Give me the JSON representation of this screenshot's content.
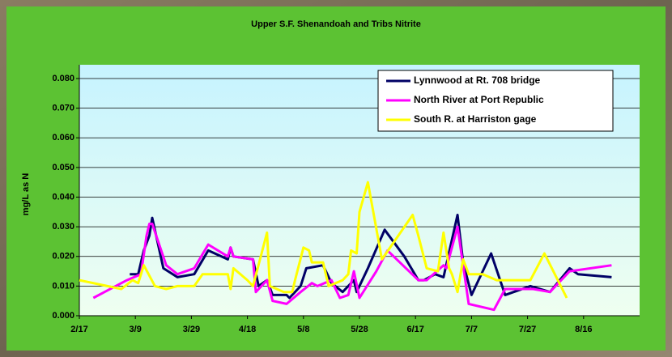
{
  "chart_data": {
    "type": "line",
    "title": "Upper S.F. Shenandoah and Tribs Nitrite",
    "y_label": "mg/L as N",
    "xlim": [
      "2/17",
      "9/5"
    ],
    "xticks": [
      "2/17",
      "3/9",
      "3/29",
      "4/18",
      "5/8",
      "5/28",
      "6/17",
      "7/7",
      "7/27",
      "8/16"
    ],
    "ylim": [
      0,
      0.08
    ],
    "yticks": [
      {
        "value": 0,
        "label": "0.000"
      },
      {
        "value": 0.01,
        "label": "0.010"
      },
      {
        "value": 0.02,
        "label": "0.020"
      },
      {
        "value": 0.03,
        "label": "0.030"
      },
      {
        "value": 0.04,
        "label": "0.040"
      },
      {
        "value": 0.05,
        "label": "0.050"
      },
      {
        "value": 0.06,
        "label": "0.060"
      },
      {
        "value": 0.07,
        "label": "0.070"
      },
      {
        "value": 0.08,
        "label": "0.080"
      }
    ],
    "grid": true,
    "legend": "upper right",
    "series": [
      {
        "name": "Lynnwood at Rt. 708 bridge",
        "color": "#000066",
        "x": [
          "3/7",
          "3/10",
          "3/12",
          "3/14",
          "3/15",
          "3/19",
          "3/24",
          "3/30",
          "4/4",
          "4/11",
          "4/12",
          "4/13",
          "4/20",
          "4/22",
          "4/25",
          "4/27",
          "5/2",
          "5/3",
          "5/7",
          "5/9",
          "5/15",
          "5/18",
          "5/22",
          "5/26",
          "5/27",
          "5/31",
          "6/6",
          "6/13",
          "6/18",
          "6/20",
          "6/24",
          "6/27",
          "7/2",
          "7/4",
          "7/7",
          "7/14",
          "7/19",
          "7/28",
          "8/4",
          "8/11",
          "8/14",
          "8/26"
        ],
        "values": [
          0.014,
          0.014,
          0.022,
          0.027,
          0.033,
          0.016,
          0.013,
          0.014,
          0.022,
          0.019,
          0.023,
          0.02,
          0.019,
          0.01,
          0.012,
          0.007,
          0.007,
          0.006,
          0.01,
          0.016,
          0.017,
          0.011,
          0.008,
          0.012,
          0.008,
          0.016,
          0.029,
          0.02,
          0.012,
          0.012,
          0.014,
          0.013,
          0.034,
          0.018,
          0.007,
          0.021,
          0.007,
          0.01,
          0.008,
          0.016,
          0.014,
          0.013
        ]
      },
      {
        "name": "North River at Port Republic",
        "color": "#ff00ff",
        "x": [
          "2/22",
          "3/6",
          "3/11",
          "3/13",
          "3/14",
          "3/15",
          "3/20",
          "3/24",
          "3/30",
          "4/4",
          "4/11",
          "4/12",
          "4/13",
          "4/20",
          "4/21",
          "4/25",
          "4/27",
          "5/2",
          "5/7",
          "5/11",
          "5/13",
          "5/18",
          "5/21",
          "5/24",
          "5/26",
          "5/28",
          "6/3",
          "6/7",
          "6/18",
          "6/21",
          "6/27",
          "6/28",
          "7/2",
          "7/6",
          "7/15",
          "7/19",
          "7/29",
          "8/4",
          "8/11",
          "8/26"
        ],
        "values": [
          0.006,
          0.012,
          0.014,
          0.027,
          0.031,
          0.031,
          0.017,
          0.014,
          0.016,
          0.024,
          0.02,
          0.023,
          0.02,
          0.019,
          0.008,
          0.012,
          0.005,
          0.004,
          0.008,
          0.011,
          0.01,
          0.012,
          0.006,
          0.007,
          0.015,
          0.006,
          0.015,
          0.022,
          0.012,
          0.012,
          0.017,
          0.016,
          0.03,
          0.004,
          0.002,
          0.009,
          0.009,
          0.008,
          0.015,
          0.017
        ]
      },
      {
        "name": "South R. at Harriston gage",
        "color": "#ffff00",
        "x": [
          "2/17",
          "3/4",
          "3/8",
          "3/10",
          "3/12",
          "3/16",
          "3/20",
          "3/24",
          "3/30",
          "4/2",
          "4/11",
          "4/12",
          "4/13",
          "4/18",
          "4/20",
          "4/25",
          "4/26",
          "5/1",
          "5/4",
          "5/5",
          "5/8",
          "5/10",
          "5/11",
          "5/15",
          "5/17",
          "5/22",
          "5/24",
          "5/25",
          "5/27",
          "5/28",
          "5/31",
          "6/5",
          "6/16",
          "6/18",
          "6/21",
          "6/25",
          "6/27",
          "6/29",
          "6/30",
          "7/2",
          "7/4",
          "7/6",
          "7/11",
          "7/16",
          "7/28",
          "8/2",
          "8/10"
        ],
        "values": [
          0.012,
          0.009,
          0.012,
          0.011,
          0.017,
          0.01,
          0.009,
          0.01,
          0.01,
          0.014,
          0.014,
          0.009,
          0.016,
          0.012,
          0.01,
          0.028,
          0.01,
          0.008,
          0.008,
          0.012,
          0.023,
          0.022,
          0.018,
          0.018,
          0.01,
          0.012,
          0.014,
          0.022,
          0.021,
          0.035,
          0.045,
          0.019,
          0.034,
          0.027,
          0.016,
          0.015,
          0.028,
          0.016,
          0.014,
          0.008,
          0.019,
          0.014,
          0.014,
          0.012,
          0.012,
          0.021,
          0.006
        ]
      }
    ]
  }
}
